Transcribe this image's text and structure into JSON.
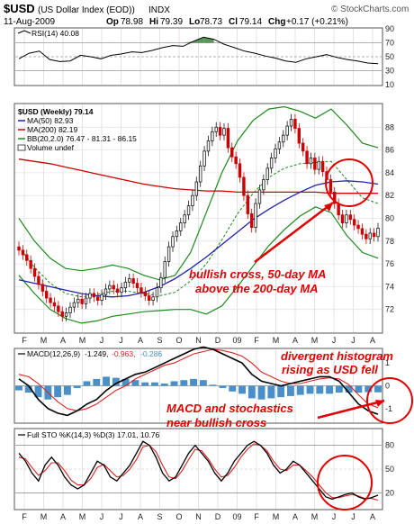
{
  "header": {
    "symbol": "$USD",
    "name": "(US Dollar Index (EOD))",
    "exchange": "INDX",
    "date": "11-Aug-2009",
    "open_label": "Op",
    "open": "78.98",
    "high_label": "Hi",
    "high": "79.39",
    "low_label": "Lo",
    "low": "78.73",
    "close_label": "Cl",
    "close": "79.14",
    "change_label": "Chg",
    "change": "+0.17 (+0.21%)",
    "watermark": "© StockCharts.com"
  },
  "colors": {
    "up_candle": "#1a1a1a",
    "down_candle": "#cc0000",
    "ma50": "#2222aa",
    "ma200": "#cc0000",
    "bb_bands": "#1e8a1e",
    "bb_mid": "#1e8a1e",
    "macd_line": "#000000",
    "macd_signal": "#dd2222",
    "histogram": "#4a90c8",
    "sto_k": "#000000",
    "sto_d": "#dd2222",
    "annotation": "#e00000",
    "rsi_fill": "#2e7d32"
  },
  "chart_data": [
    {
      "type": "line",
      "panel": "rsi",
      "legend": "RSI(14) 40.08",
      "ylim": [
        10,
        90
      ],
      "yticks": [
        10,
        30,
        50,
        70,
        90
      ],
      "reference_lines": [
        30,
        50,
        70
      ],
      "values": [
        47,
        55,
        58,
        46,
        43,
        44,
        52,
        50,
        47,
        52,
        54,
        57,
        56,
        59,
        63,
        66,
        65,
        72,
        78,
        75,
        68,
        63,
        58,
        55,
        51,
        48,
        44,
        42,
        47,
        50,
        53,
        49,
        46,
        44,
        41,
        40
      ],
      "last": 40.08
    },
    {
      "type": "candlestick",
      "panel": "price",
      "legend": [
        "$USD (Weekly) 79.14",
        "MA(50) 82.93",
        "MA(200) 82.19",
        "BB(20,2.0) 76.47 - 81.31 - 86.15",
        "Volume undef"
      ],
      "ylim": [
        70,
        90
      ],
      "yticks": [
        72,
        74,
        76,
        78,
        80,
        82,
        84,
        86,
        88
      ],
      "x_labels": [
        "F",
        "M",
        "A",
        "M",
        "J",
        "J",
        "A",
        "S",
        "O",
        "N",
        "D",
        "09",
        "F",
        "M",
        "A",
        "M",
        "J",
        "J",
        "A"
      ],
      "closes": [
        77.2,
        76.8,
        76.3,
        75.6,
        74.9,
        74.2,
        73.6,
        73.0,
        72.6,
        72.3,
        71.8,
        71.4,
        71.7,
        72.2,
        72.6,
        72.9,
        72.5,
        73.0,
        73.4,
        73.1,
        72.8,
        73.3,
        73.8,
        74.1,
        73.8,
        73.5,
        73.9,
        74.4,
        74.7,
        74.3,
        73.9,
        73.5,
        73.2,
        72.8,
        73.1,
        73.9,
        74.8,
        76.2,
        77.5,
        78.4,
        78.9,
        79.6,
        80.3,
        81.1,
        82.0,
        83.2,
        84.6,
        85.9,
        86.8,
        87.6,
        88.0,
        87.3,
        87.9,
        86.2,
        85.4,
        84.8,
        83.6,
        82.0,
        80.4,
        79.2,
        81.3,
        82.5,
        83.4,
        84.4,
        85.3,
        86.1,
        86.7,
        87.3,
        88.1,
        88.7,
        87.9,
        86.6,
        85.9,
        84.8,
        85.3,
        84.3,
        85.0,
        84.1,
        83.4,
        82.3,
        81.3,
        80.3,
        79.6,
        80.3,
        79.9,
        79.4,
        79.1,
        78.6,
        78.2,
        78.7,
        78.4,
        79.14
      ],
      "ma50": [
        74.6,
        74.3,
        74.0,
        73.7,
        73.4,
        73.2,
        73.1,
        73.2,
        73.5,
        74.0,
        74.7,
        75.6,
        76.6,
        77.7,
        78.8,
        79.9,
        80.8,
        81.6,
        82.3,
        82.9,
        83.2,
        83.3,
        83.2,
        83.0
      ],
      "ma200": [
        85.2,
        85.0,
        84.8,
        84.5,
        84.2,
        83.9,
        83.6,
        83.3,
        83.0,
        82.8,
        82.6,
        82.5,
        82.4,
        82.4,
        82.3,
        82.3,
        82.3,
        82.3,
        82.3,
        82.3,
        82.2,
        82.2,
        82.2,
        82.2
      ],
      "bb_upper": [
        80.0,
        78.0,
        76.5,
        75.6,
        75.4,
        75.6,
        75.9,
        75.6,
        75.0,
        74.6,
        75.0,
        77.0,
        80.5,
        84.0,
        86.8,
        88.6,
        89.6,
        89.8,
        89.4,
        88.8,
        89.6,
        88.2,
        86.6,
        86.2
      ],
      "bb_lower": [
        75.0,
        73.4,
        72.0,
        71.2,
        70.8,
        71.0,
        71.4,
        71.6,
        71.8,
        71.9,
        72.0,
        72.0,
        71.6,
        72.3,
        74.0,
        75.8,
        77.6,
        79.0,
        80.2,
        81.0,
        80.5,
        78.5,
        77.0,
        76.5
      ],
      "bb_mid": [
        77.5,
        75.7,
        74.3,
        73.4,
        73.1,
        73.3,
        73.6,
        73.6,
        73.4,
        73.2,
        73.5,
        74.5,
        76.0,
        78.1,
        80.4,
        82.2,
        83.6,
        84.4,
        84.8,
        84.9,
        85.0,
        83.4,
        81.8,
        81.3
      ]
    },
    {
      "type": "line",
      "panel": "macd",
      "legend_label": "MACD(12,26,9)",
      "legend_values": [
        "-1.249,",
        "-0.963,",
        "-0.286"
      ],
      "ylim": [
        -1.6,
        1.6
      ],
      "yticks": [
        -1,
        0,
        1
      ],
      "macd": [
        0.3,
        0.0,
        -0.6,
        -1.0,
        -1.2,
        -1.3,
        -1.1,
        -0.8,
        -0.6,
        -0.2,
        0.1,
        0.3,
        0.5,
        0.6,
        0.8,
        1.0,
        1.2,
        1.4,
        1.6,
        1.7,
        1.6,
        1.4,
        1.2,
        1.0,
        0.5,
        0.2,
        0.1,
        0.0,
        0.1,
        0.2,
        0.3,
        0.4,
        0.4,
        0.2,
        -0.3,
        -0.8,
        -1.1,
        -1.25
      ],
      "signal": [
        0.5,
        0.4,
        0.1,
        -0.3,
        -0.7,
        -1.0,
        -1.1,
        -1.0,
        -0.8,
        -0.5,
        -0.2,
        0.0,
        0.3,
        0.5,
        0.7,
        0.9,
        1.0,
        1.2,
        1.4,
        1.5,
        1.6,
        1.55,
        1.45,
        1.3,
        1.0,
        0.6,
        0.4,
        0.2,
        0.1,
        0.1,
        0.2,
        0.3,
        0.35,
        0.3,
        0.05,
        -0.4,
        -0.8,
        -0.96
      ],
      "histogram": [
        -0.2,
        -0.3,
        -0.5,
        -0.6,
        -0.5,
        -0.4,
        -0.1,
        0.2,
        0.3,
        0.4,
        0.35,
        0.3,
        0.25,
        0.15,
        0.15,
        0.1,
        0.2,
        0.25,
        0.3,
        0.25,
        0.05,
        -0.1,
        -0.25,
        -0.35,
        -0.55,
        -0.6,
        -0.55,
        -0.5,
        -0.45,
        -0.4,
        -0.35,
        -0.35,
        -0.35,
        -0.3,
        -0.3,
        -0.3,
        -0.28,
        -0.286
      ]
    },
    {
      "type": "line",
      "panel": "stochastics",
      "legend": "Full STO %K(14,3) %D(3) 17.01, 10.76",
      "ylim": [
        0,
        100
      ],
      "yticks": [
        20,
        50,
        80
      ],
      "reference_lines": [
        20,
        80
      ],
      "k": [
        70,
        60,
        45,
        35,
        55,
        65,
        55,
        40,
        30,
        25,
        30,
        45,
        60,
        55,
        40,
        35,
        45,
        55,
        70,
        85,
        80,
        65,
        45,
        35,
        40,
        55,
        70,
        80,
        70,
        60,
        45,
        35,
        45,
        60,
        70,
        80,
        85,
        80,
        70,
        55,
        45,
        50,
        60,
        55,
        45,
        35,
        25,
        15,
        12,
        15,
        18,
        20,
        15,
        12,
        14,
        17
      ],
      "d": [
        65,
        63,
        52,
        42,
        48,
        58,
        58,
        48,
        36,
        30,
        30,
        38,
        52,
        56,
        48,
        40,
        42,
        50,
        62,
        78,
        80,
        72,
        55,
        40,
        38,
        48,
        62,
        75,
        73,
        63,
        50,
        40,
        42,
        52,
        65,
        75,
        82,
        80,
        73,
        60,
        50,
        48,
        55,
        55,
        48,
        40,
        30,
        20,
        14,
        14,
        16,
        18,
        16,
        13,
        13,
        10.76
      ],
      "x_labels": [
        "F",
        "M",
        "A",
        "M",
        "J",
        "J",
        "A",
        "S",
        "O",
        "N",
        "D",
        "09",
        "F",
        "M",
        "A",
        "M",
        "J",
        "J",
        "A"
      ]
    }
  ],
  "annotations": {
    "bullish_cross_1": "bullish cross, 50-day MA",
    "bullish_cross_2": "above the 200-day MA",
    "divergent_1": "divergent histogram",
    "divergent_2": "rising as USD fell",
    "macd_sto_1": "MACD and stochastics",
    "macd_sto_2": "near bullish cross"
  }
}
